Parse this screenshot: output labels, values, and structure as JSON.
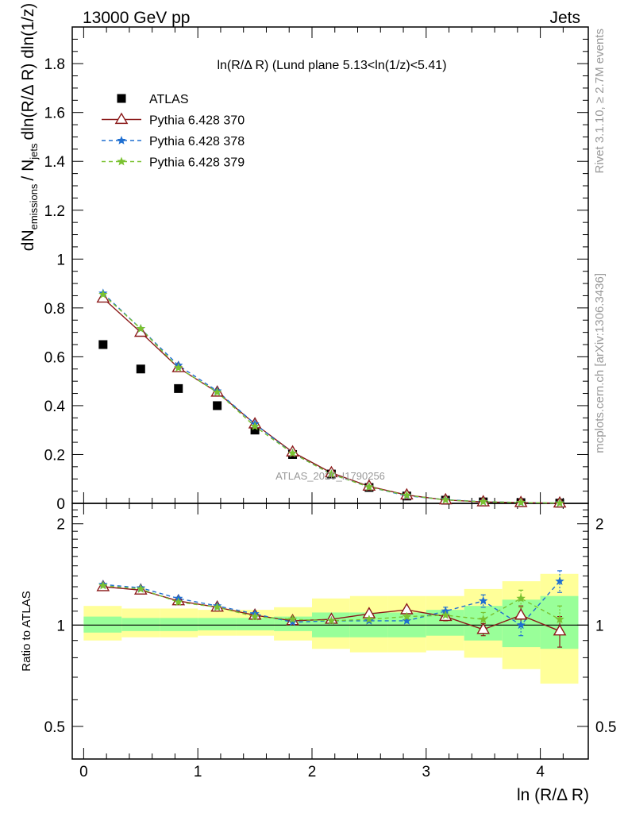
{
  "header": {
    "left": "13000 GeV pp",
    "right": "Jets"
  },
  "side_labels": {
    "rivet": "Rivet 3.1.10, ≥ 2.7M events",
    "mcplots": "mcplots.cern.ch [arXiv:1306.3436]"
  },
  "watermark": "ATLAS_2020_I1790256",
  "chart_data": [
    {
      "type": "scatter",
      "title": "ln(R/Δ R) (Lund plane 5.13<ln(1/z)<5.41)",
      "ylabel": "1/N_jets dN_emissions/dln(R/Δ R) dln(1/z)",
      "xlabel": "",
      "xlim": [
        -0.1,
        4.42
      ],
      "ylim": [
        0,
        1.95
      ],
      "x_ticks": [
        0,
        1,
        2,
        3,
        4
      ],
      "y_ticks": [
        0,
        0.2,
        0.4,
        0.6,
        0.8,
        1,
        1.2,
        1.4,
        1.6,
        1.8
      ],
      "y_tick_labels": [
        "0",
        "0.2",
        "0.4",
        "0.6",
        "0.8",
        "1",
        "1.2",
        "1.4",
        "1.6",
        "1.8"
      ],
      "legend": "top-left",
      "x": [
        0.17,
        0.5,
        0.83,
        1.17,
        1.5,
        1.83,
        2.17,
        2.5,
        2.83,
        3.17,
        3.5,
        3.83,
        4.17
      ],
      "series": [
        {
          "name": "ATLAS",
          "color": "#000000",
          "marker": "square",
          "values": [
            0.65,
            0.55,
            0.47,
            0.4,
            0.3,
            0.2,
            0.12,
            0.065,
            0.03,
            0.013,
            0.006,
            0.003,
            0.001
          ]
        },
        {
          "name": "Pythia 6.428 370",
          "color": "#8b1a1a",
          "marker": "triangle",
          "dash": "",
          "values": [
            0.84,
            0.7,
            0.555,
            0.455,
            0.325,
            0.21,
            0.125,
            0.07,
            0.034,
            0.014,
            0.006,
            0.003,
            0.001
          ]
        },
        {
          "name": "Pythia 6.428 378",
          "color": "#1f6fd1",
          "marker": "star",
          "dash": "5,4",
          "values": [
            0.86,
            0.715,
            0.565,
            0.46,
            0.325,
            0.205,
            0.12,
            0.067,
            0.031,
            0.015,
            0.007,
            0.003,
            0.0015
          ]
        },
        {
          "name": "Pythia 6.428 379",
          "color": "#7ac231",
          "marker": "star",
          "dash": "5,4",
          "values": [
            0.855,
            0.715,
            0.555,
            0.455,
            0.315,
            0.205,
            0.12,
            0.067,
            0.033,
            0.014,
            0.0065,
            0.0035,
            0.001
          ]
        }
      ]
    },
    {
      "type": "scatter",
      "title": "",
      "ylabel": "Ratio to ATLAS",
      "xlabel": "ln (R/Δ R)",
      "xlim": [
        -0.1,
        4.42
      ],
      "ylim": [
        0.4,
        2.3
      ],
      "log_y": true,
      "x_ticks": [
        0,
        1,
        2,
        3,
        4
      ],
      "x_tick_labels": [
        "0",
        "1",
        "2",
        "3",
        "4"
      ],
      "y_ticks": [
        0.5,
        1,
        2
      ],
      "y_tick_labels": [
        "0.5",
        "1",
        "2"
      ],
      "x": [
        0.17,
        0.5,
        0.83,
        1.17,
        1.5,
        1.83,
        2.17,
        2.5,
        2.83,
        3.17,
        3.5,
        3.83,
        4.17
      ],
      "band_edges": [
        0,
        0.333,
        0.667,
        1,
        1.333,
        1.667,
        2,
        2.333,
        2.667,
        3,
        3.333,
        3.667,
        4,
        4.333
      ],
      "stat_band": {
        "lo": [
          0.95,
          0.96,
          0.96,
          0.965,
          0.965,
          0.96,
          0.92,
          0.92,
          0.92,
          0.93,
          0.9,
          0.86,
          0.85
        ],
        "hi": [
          1.06,
          1.05,
          1.05,
          1.05,
          1.05,
          1.06,
          1.09,
          1.09,
          1.09,
          1.11,
          1.14,
          1.19,
          1.22
        ]
      },
      "total_band": {
        "lo": [
          0.9,
          0.92,
          0.92,
          0.93,
          0.93,
          0.9,
          0.85,
          0.83,
          0.83,
          0.84,
          0.8,
          0.74,
          0.67
        ],
        "hi": [
          1.14,
          1.12,
          1.12,
          1.11,
          1.11,
          1.13,
          1.2,
          1.22,
          1.22,
          1.22,
          1.28,
          1.35,
          1.42
        ]
      },
      "series": [
        {
          "name": "Pythia 6.428 370",
          "color": "#8b1a1a",
          "marker": "triangle",
          "dash": "",
          "values": [
            1.3,
            1.27,
            1.18,
            1.13,
            1.07,
            1.03,
            1.04,
            1.08,
            1.11,
            1.06,
            0.97,
            1.07,
            0.96
          ],
          "err": [
            0.01,
            0.01,
            0.01,
            0.01,
            0.01,
            0.01,
            0.01,
            0.01,
            0.02,
            0.03,
            0.04,
            0.07,
            0.1
          ]
        },
        {
          "name": "Pythia 6.428 378",
          "color": "#1f6fd1",
          "marker": "star",
          "dash": "5,4",
          "values": [
            1.32,
            1.29,
            1.2,
            1.14,
            1.08,
            1.02,
            1.03,
            1.03,
            1.03,
            1.1,
            1.18,
            1.0,
            1.35
          ],
          "err": [
            0.01,
            0.01,
            0.01,
            0.01,
            0.01,
            0.01,
            0.01,
            0.01,
            0.02,
            0.03,
            0.05,
            0.07,
            0.1
          ]
        },
        {
          "name": "Pythia 6.428 379",
          "color": "#7ac231",
          "marker": "star",
          "dash": "5,4",
          "values": [
            1.31,
            1.28,
            1.17,
            1.13,
            1.06,
            1.04,
            1.03,
            1.04,
            1.06,
            1.07,
            1.04,
            1.2,
            1.04
          ],
          "err": [
            0.01,
            0.01,
            0.01,
            0.01,
            0.01,
            0.01,
            0.01,
            0.01,
            0.02,
            0.03,
            0.05,
            0.07,
            0.1
          ]
        }
      ]
    }
  ]
}
